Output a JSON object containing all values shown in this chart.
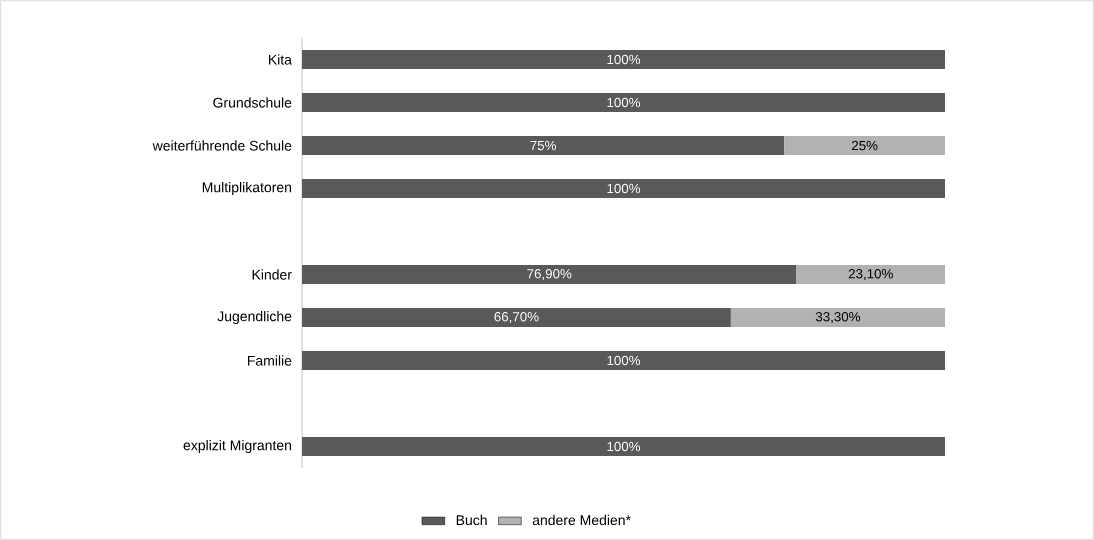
{
  "chart_data": {
    "type": "bar",
    "orientation": "horizontal",
    "stacked": true,
    "legend": "bottom",
    "categories": [
      "Kita",
      "Grundschule",
      "weiterführende Schule",
      "Multiplikatoren",
      null,
      "Kinder",
      "Jugendliche",
      "Familie",
      null,
      "explizit Migranten"
    ],
    "xlim": [
      0,
      100
    ],
    "series": [
      {
        "name": "Buch",
        "color": "#595959",
        "values": [
          100,
          100,
          75,
          100,
          null,
          76.9,
          66.7,
          100,
          null,
          100
        ],
        "value_labels": [
          "100%",
          "100%",
          "75%",
          "100%",
          null,
          "76,90%",
          "66,70%",
          "100%",
          null,
          "100%"
        ]
      },
      {
        "name": "andere Medien*",
        "color": "#b2b2b2",
        "values": [
          null,
          null,
          25,
          null,
          null,
          23.1,
          33.3,
          null,
          null,
          null
        ],
        "value_labels": [
          null,
          null,
          "25%",
          null,
          null,
          "23,10%",
          "33,30%",
          null,
          null,
          null
        ]
      }
    ]
  }
}
